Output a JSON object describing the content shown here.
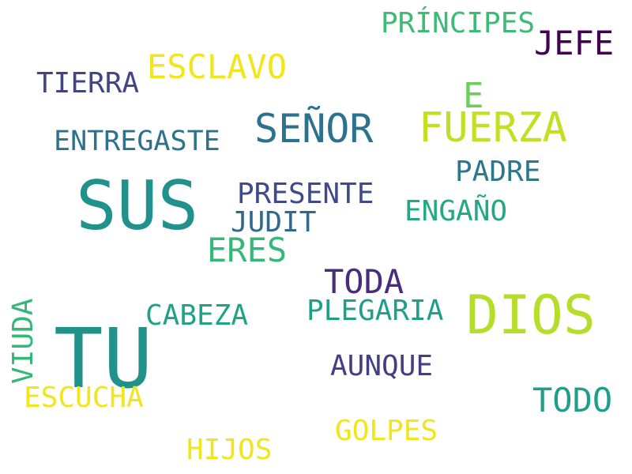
{
  "words": [
    {
      "text": "SUS",
      "color": "#21918c"
    },
    {
      "text": "TU",
      "color": "#21918c"
    },
    {
      "text": "DIOS",
      "color": "#b5de2b"
    },
    {
      "text": "SEÑOR",
      "color": "#2c728e"
    },
    {
      "text": "FUERZA",
      "color": "#c2df23"
    },
    {
      "text": "TODO",
      "color": "#1f9e89"
    },
    {
      "text": "TODA",
      "color": "#472d7b"
    },
    {
      "text": "ESCLAVO",
      "color": "#f1e51d"
    },
    {
      "text": "ERES",
      "color": "#35b779"
    },
    {
      "text": "JEFE",
      "color": "#440154"
    },
    {
      "text": "PRÍNCIPES",
      "color": "#3bbb75"
    },
    {
      "text": "PRESENTE",
      "color": "#3e4a89"
    },
    {
      "text": "ENTREGASTE",
      "color": "#2c728e"
    },
    {
      "text": "PADRE",
      "color": "#2a788e"
    },
    {
      "text": "ENGAÑO",
      "color": "#22a884"
    },
    {
      "text": "JUDIT",
      "color": "#31688e"
    },
    {
      "text": "PLEGARIA",
      "color": "#1f9e89"
    },
    {
      "text": "CABEZA",
      "color": "#1fa287"
    },
    {
      "text": "AUNQUE",
      "color": "#433e85"
    },
    {
      "text": "ESCUCHA",
      "color": "#f1e51d"
    },
    {
      "text": "GOLPES",
      "color": "#f1e51d"
    },
    {
      "text": "HIJOS",
      "color": "#f1e51d"
    },
    {
      "text": "TIERRA",
      "color": "#414487"
    },
    {
      "text": "E",
      "color": "#6ccd5a"
    },
    {
      "text": "VIUDA",
      "color": "#35b779"
    }
  ]
}
